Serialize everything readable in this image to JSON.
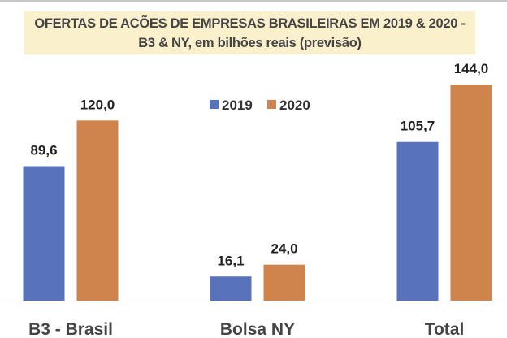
{
  "chart_data": {
    "type": "bar",
    "title_line1": "OFERTAS DE ACÕES DE EMPRESAS BRASILEIRAS  EM 2019 & 2020 -",
    "title_line2": "B3 & NY, em bilhões reais (previsão)",
    "categories": [
      "B3 - Brasil",
      "Bolsa NY",
      "Total"
    ],
    "series": [
      {
        "name": "2019",
        "color": "#5872bb",
        "values": [
          89.6,
          16.1,
          105.7
        ],
        "labels": [
          "89,6",
          "16,1",
          "105,7"
        ]
      },
      {
        "name": "2020",
        "color": "#cf834d",
        "values": [
          120.0,
          24.0,
          144.0
        ],
        "labels": [
          "120,0",
          "24,0",
          "144,0"
        ]
      }
    ],
    "ylim": [
      0,
      144
    ],
    "grid": false,
    "legend_position": "top-center"
  }
}
